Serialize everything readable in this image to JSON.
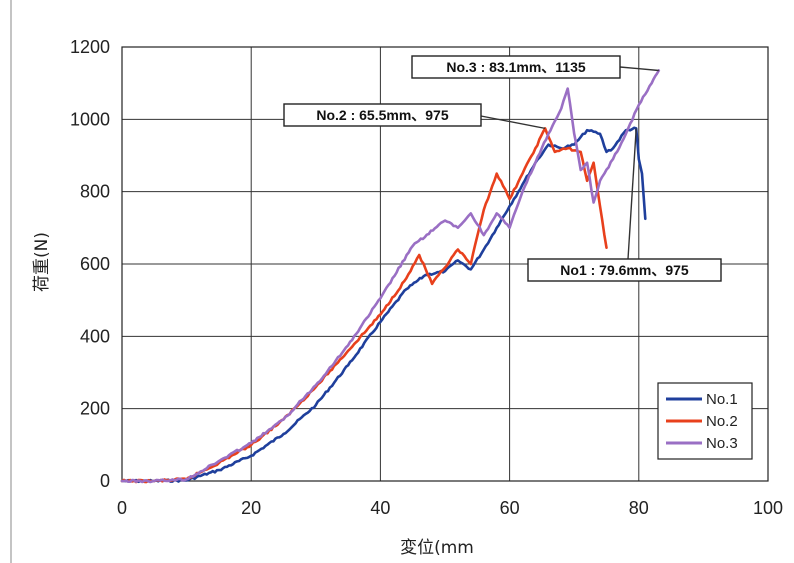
{
  "chart_data": {
    "type": "line",
    "xlabel": "変位(mm",
    "ylabel": "荷重(N)",
    "xlim": [
      0,
      100
    ],
    "ylim": [
      0,
      1200
    ],
    "x_ticks": [
      0,
      20,
      40,
      60,
      80,
      100
    ],
    "y_ticks": [
      0,
      200,
      400,
      600,
      800,
      1000,
      1200
    ],
    "grid": true,
    "legend_position": "bottom-right",
    "series": [
      {
        "name": "No.1",
        "color": "#1f3f9c",
        "x": [
          0,
          5,
          10,
          15,
          20,
          25,
          30,
          35,
          40,
          44,
          47,
          50,
          52,
          54,
          56,
          58,
          60,
          62,
          64,
          66,
          68,
          70,
          72,
          74,
          75,
          76,
          78,
          79.6,
          80,
          80.5,
          81
        ],
        "y": [
          0,
          0,
          2,
          30,
          70,
          130,
          210,
          320,
          440,
          530,
          570,
          580,
          610,
          585,
          640,
          700,
          760,
          820,
          880,
          930,
          920,
          930,
          970,
          960,
          910,
          920,
          970,
          975,
          890,
          850,
          725
        ]
      },
      {
        "name": "No.2",
        "color": "#e8401c",
        "x": [
          0,
          5,
          10,
          15,
          20,
          25,
          30,
          35,
          40,
          44,
          46,
          48,
          50,
          52,
          54,
          56,
          58,
          60,
          62,
          64,
          65.5,
          67,
          69,
          71,
          72,
          73,
          74,
          75
        ],
        "y": [
          0,
          0,
          5,
          50,
          100,
          170,
          260,
          360,
          460,
          560,
          625,
          545,
          590,
          640,
          600,
          750,
          850,
          780,
          850,
          920,
          975,
          910,
          920,
          910,
          830,
          880,
          760,
          645
        ]
      },
      {
        "name": "No.3",
        "color": "#9a6fc4",
        "x": [
          0,
          5,
          10,
          15,
          20,
          25,
          30,
          35,
          40,
          45,
          50,
          52,
          54,
          56,
          58,
          60,
          62,
          64,
          66,
          68,
          69,
          70,
          71,
          72,
          73,
          74,
          76,
          78,
          80,
          82,
          83.1
        ],
        "y": [
          0,
          0,
          5,
          55,
          105,
          170,
          265,
          375,
          505,
          650,
          720,
          700,
          740,
          680,
          740,
          700,
          800,
          880,
          960,
          1030,
          1085,
          960,
          860,
          880,
          770,
          830,
          890,
          960,
          1040,
          1100,
          1135
        ]
      }
    ],
    "annotations": [
      {
        "text": "No.3 : 83.1mm、1135",
        "x": 83.1,
        "y": 1135
      },
      {
        "text": "No.2 : 65.5mm、975",
        "x": 65.5,
        "y": 975
      },
      {
        "text": "No1 : 79.6mm、975",
        "x": 79.6,
        "y": 975
      }
    ]
  }
}
